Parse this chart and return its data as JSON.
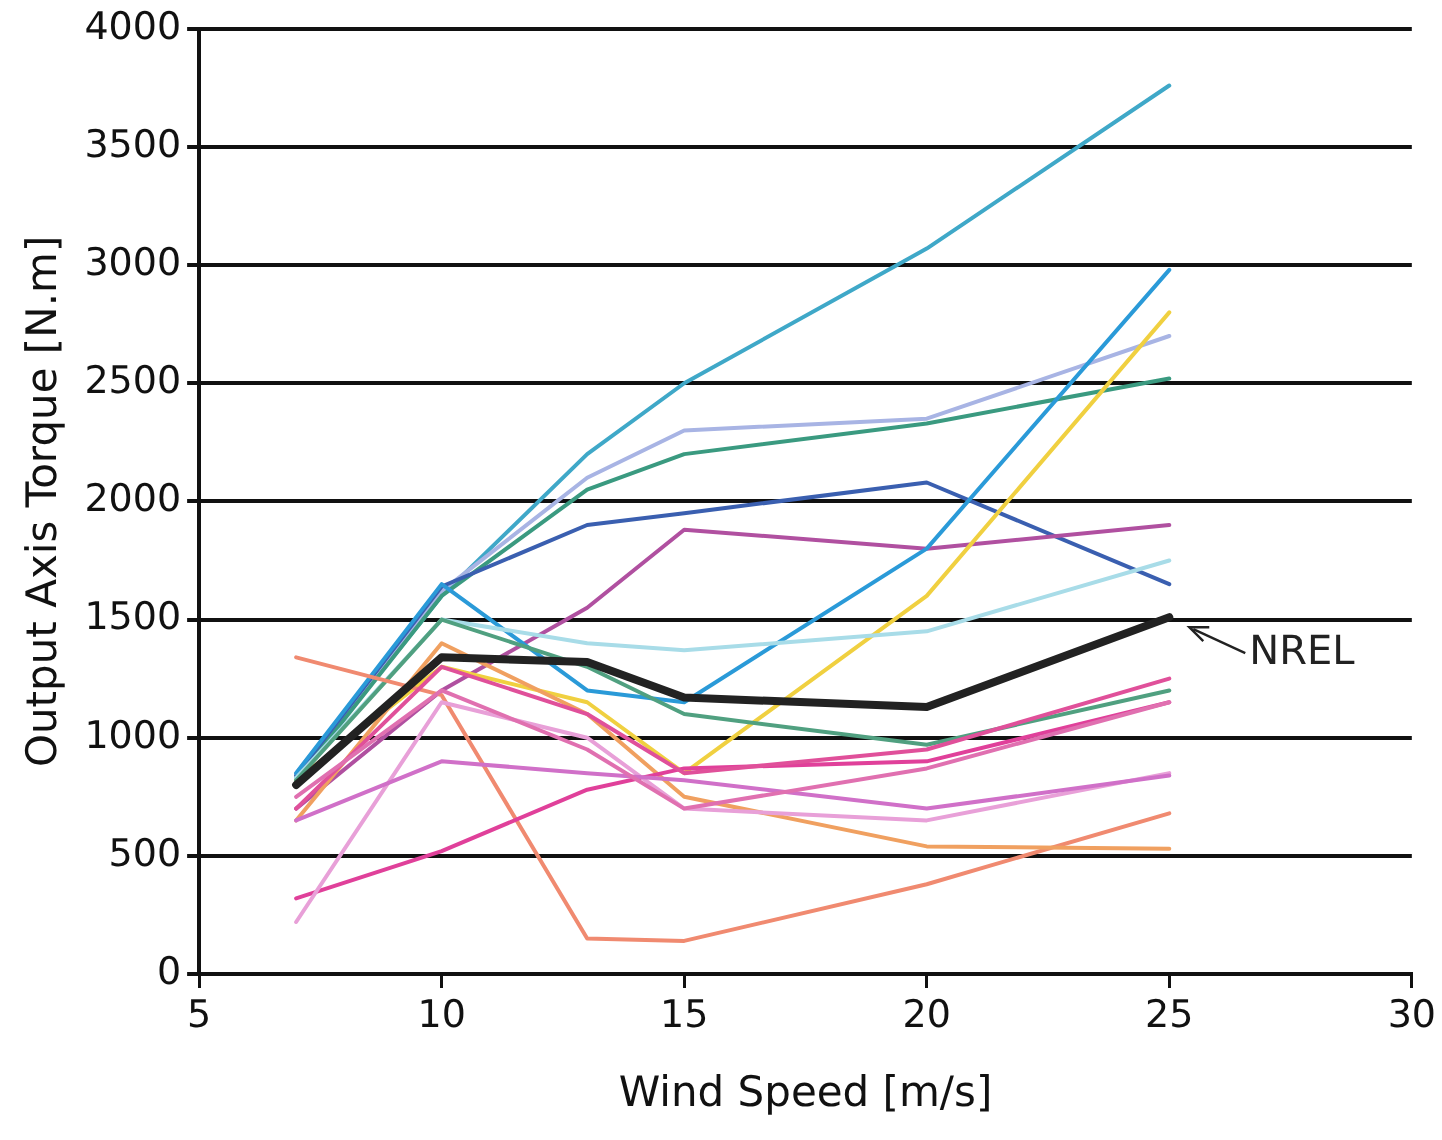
{
  "chart_data": {
    "type": "line",
    "xlabel": "Wind Speed [m/s]",
    "ylabel": "Output Axis Torque [N.m]",
    "x": [
      7,
      10,
      13,
      15,
      20,
      25
    ],
    "xlim": [
      5,
      30
    ],
    "xticks": [
      5,
      10,
      15,
      20,
      25,
      30
    ],
    "ylim": [
      0,
      4000
    ],
    "yticks": [
      0,
      500,
      1000,
      1500,
      2000,
      2500,
      3000,
      3500,
      4000
    ],
    "grid": "y",
    "legend": "right",
    "marker": "none",
    "line_style": "solid",
    "series": [
      {
        "color": "#3fa8c8",
        "values": [
          830,
          1600,
          2200,
          2500,
          3070,
          3760
        ]
      },
      {
        "color": "#a8b4e4",
        "values": [
          850,
          1620,
          2100,
          2300,
          2350,
          2700
        ]
      },
      {
        "color": "#3a9a80",
        "values": [
          820,
          1600,
          2050,
          2200,
          2330,
          2520
        ]
      },
      {
        "color": "#3a5fb0",
        "values": [
          840,
          1640,
          1900,
          1950,
          2080,
          1650
        ]
      },
      {
        "color": "#b050a0",
        "values": [
          700,
          1200,
          1550,
          1880,
          1800,
          1900
        ]
      },
      {
        "color": "#2a9ad8",
        "values": [
          850,
          1650,
          1200,
          1150,
          1800,
          2980
        ]
      },
      {
        "color": "#f0d040",
        "values": [
          820,
          1300,
          1150,
          850,
          1600,
          2800
        ]
      },
      {
        "color": "#a8dce8",
        "values": [
          830,
          1500,
          1400,
          1370,
          1450,
          1750
        ]
      },
      {
        "color": "#50a080",
        "values": [
          820,
          1500,
          1300,
          1100,
          970,
          1200
        ]
      },
      {
        "color": "#f08a70",
        "values": [
          1340,
          1180,
          150,
          140,
          380,
          680
        ]
      },
      {
        "color": "#f0a060",
        "values": [
          650,
          1400,
          1100,
          750,
          540,
          530
        ]
      },
      {
        "color": "#e0409a",
        "values": [
          320,
          520,
          780,
          870,
          900,
          1150
        ]
      },
      {
        "color": "#e8a0d8",
        "values": [
          220,
          1150,
          1000,
          700,
          650,
          850
        ]
      },
      {
        "color": "#d070c8",
        "values": [
          650,
          900,
          850,
          820,
          700,
          840
        ]
      },
      {
        "color": "#e0509a",
        "values": [
          700,
          1300,
          1100,
          850,
          950,
          1250
        ]
      },
      {
        "color": "#e070b0",
        "values": [
          750,
          1200,
          950,
          700,
          870,
          1150
        ]
      },
      {
        "name": "NREL",
        "color": "#222222",
        "values": [
          800,
          1340,
          1320,
          1170,
          1130,
          1510
        ]
      }
    ]
  }
}
